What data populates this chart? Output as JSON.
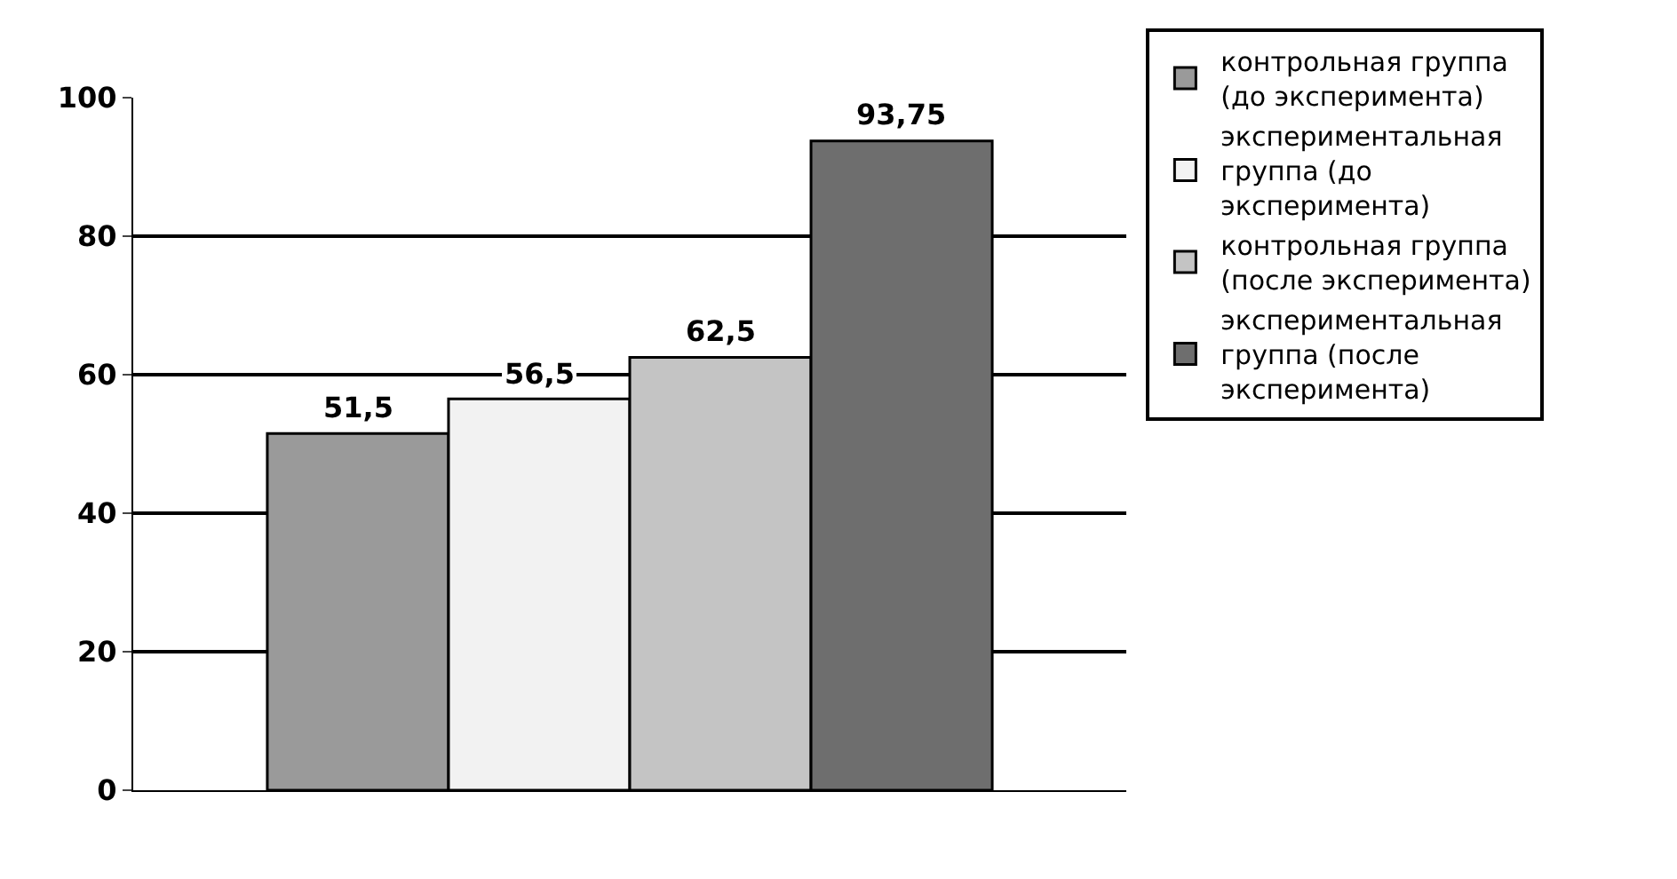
{
  "chart_data": {
    "type": "bar",
    "categories": [
      null
    ],
    "series": [
      {
        "name": "контрольная группа (до эксперимента)",
        "color": "#9a9a9a",
        "values": [
          51.5
        ],
        "value_labels": [
          "51,5"
        ]
      },
      {
        "name": "экспериментальная группа (до эксперимента)",
        "color": "#f2f2f2",
        "values": [
          56.5
        ],
        "value_labels": [
          "56,5"
        ]
      },
      {
        "name": "контрольная группа (после эксперимента)",
        "color": "#c4c4c4",
        "values": [
          62.5
        ],
        "value_labels": [
          "62,5"
        ]
      },
      {
        "name": "экспериментальная группа (после эксперимента)",
        "color": "#6e6e6e",
        "values": [
          93.75
        ],
        "value_labels": [
          "93,75"
        ]
      }
    ],
    "ylim": [
      0,
      100
    ],
    "yticks": [
      0,
      20,
      40,
      60,
      80,
      100
    ],
    "grid": "y",
    "legend": "right"
  }
}
